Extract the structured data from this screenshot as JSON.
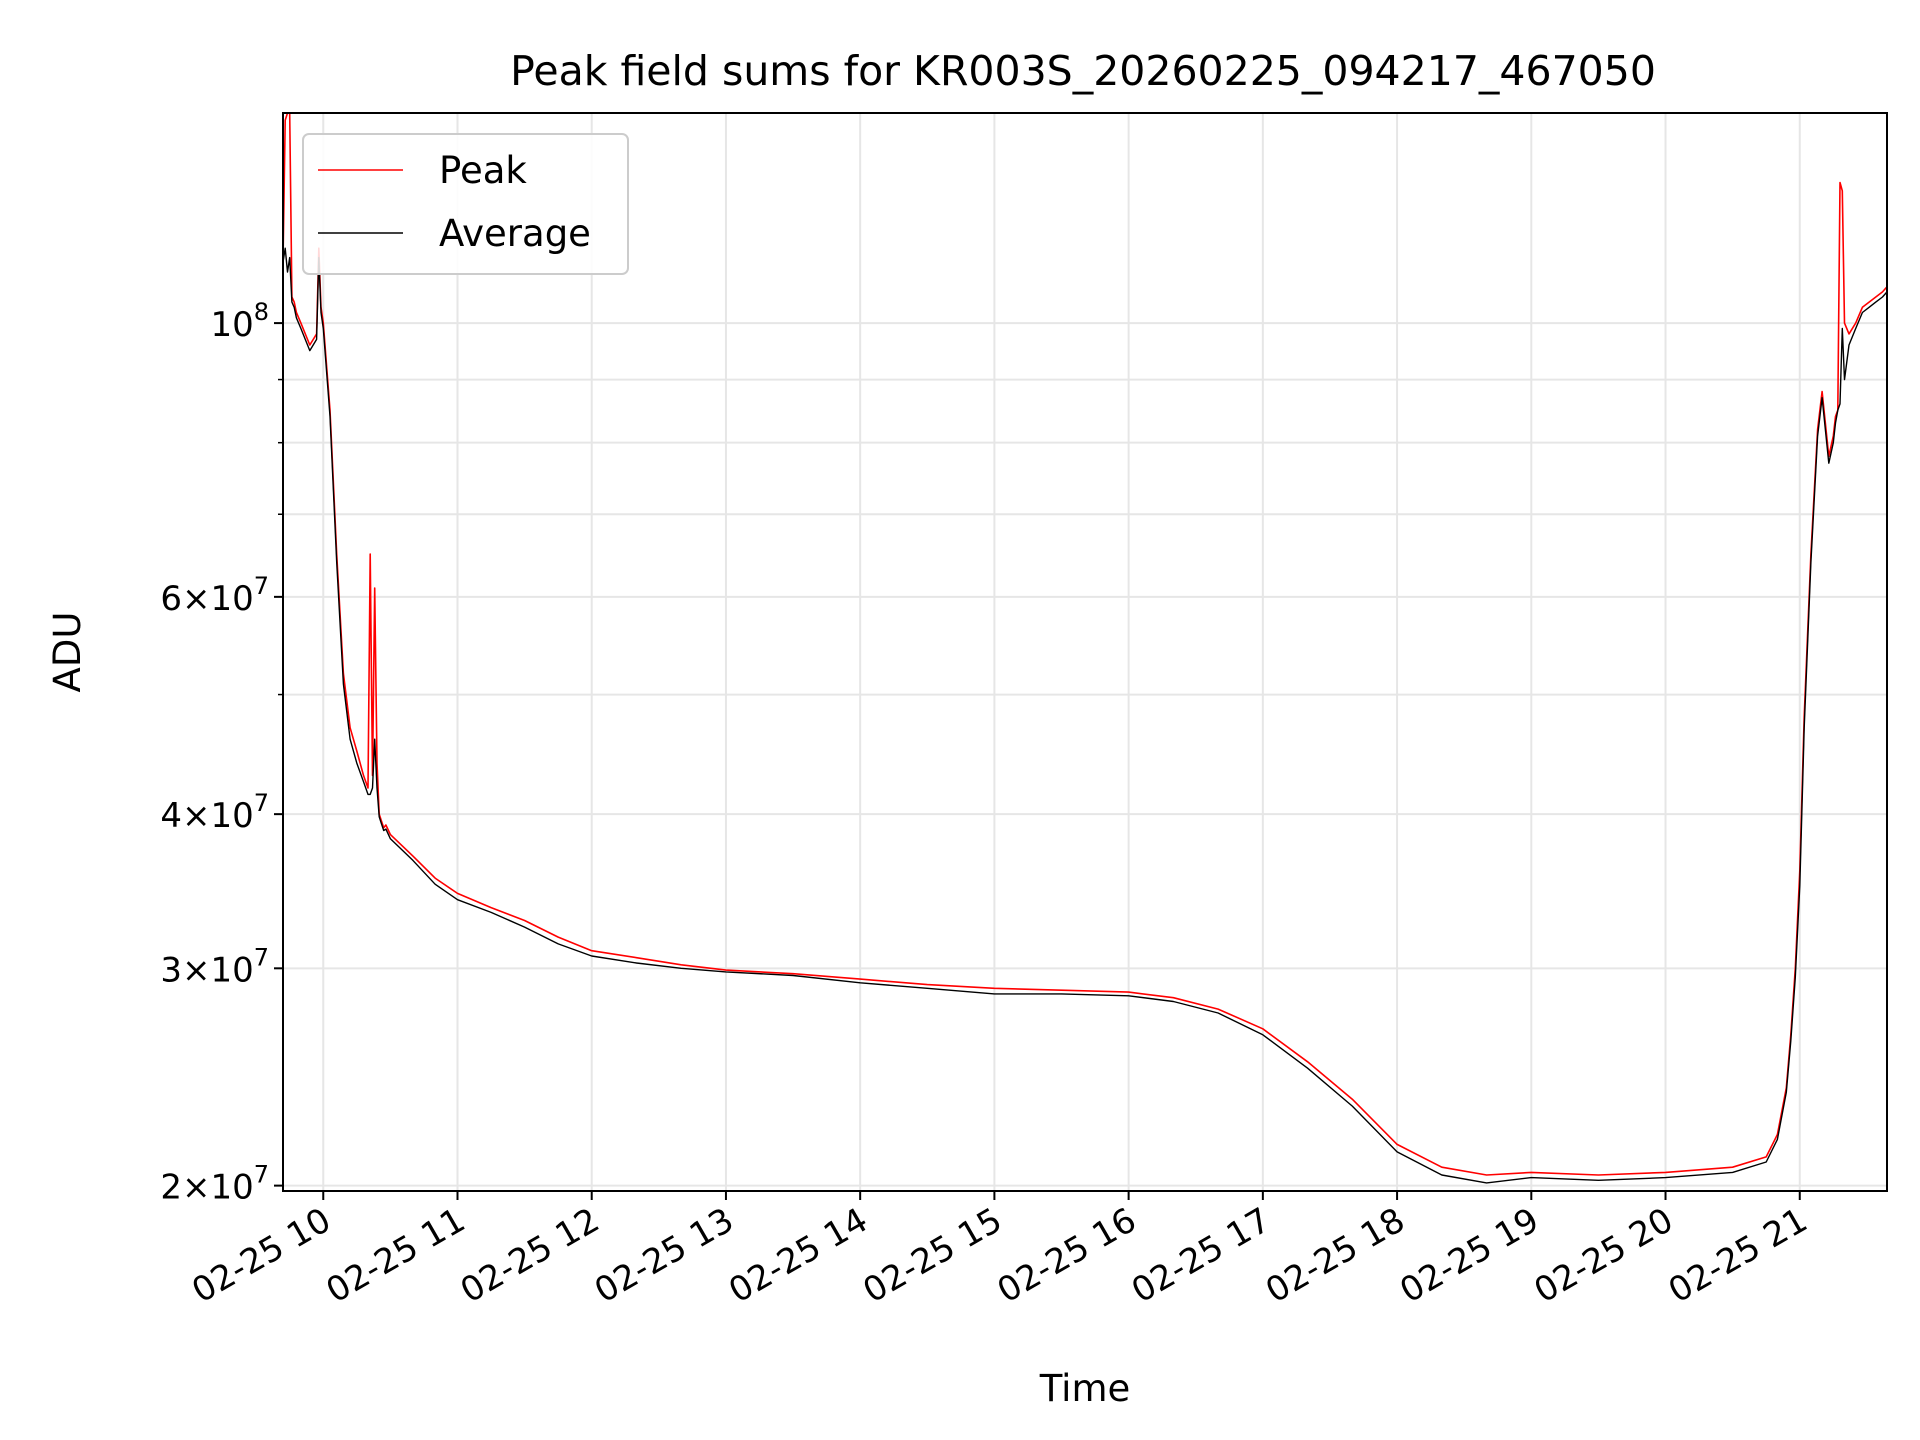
{
  "chart_data": {
    "type": "line",
    "title": "Peak field sums for KR003S_20260225_094217_467050",
    "xlabel": "Time",
    "ylabel": "ADU",
    "x_scale": "time",
    "y_scale": "log",
    "xlim": [
      "2026-02-25 09:42",
      "2026-02-25 21:39"
    ],
    "ylim": [
      19800000,
      148000000
    ],
    "grid": true,
    "legend_position": "top-left",
    "x_ticks": [
      {
        "time": "2026-02-25 10:00",
        "label": "02-25 10"
      },
      {
        "time": "2026-02-25 11:00",
        "label": "02-25 11"
      },
      {
        "time": "2026-02-25 12:00",
        "label": "02-25 12"
      },
      {
        "time": "2026-02-25 13:00",
        "label": "02-25 13"
      },
      {
        "time": "2026-02-25 14:00",
        "label": "02-25 14"
      },
      {
        "time": "2026-02-25 15:00",
        "label": "02-25 15"
      },
      {
        "time": "2026-02-25 16:00",
        "label": "02-25 16"
      },
      {
        "time": "2026-02-25 17:00",
        "label": "02-25 17"
      },
      {
        "time": "2026-02-25 18:00",
        "label": "02-25 18"
      },
      {
        "time": "2026-02-25 19:00",
        "label": "02-25 19"
      },
      {
        "time": "2026-02-25 20:00",
        "label": "02-25 20"
      },
      {
        "time": "2026-02-25 21:00",
        "label": "02-25 21"
      }
    ],
    "y_ticks": [
      {
        "value": 20000000,
        "base": "2",
        "exp": "7"
      },
      {
        "value": 30000000,
        "base": "3",
        "exp": "7"
      },
      {
        "value": 40000000,
        "base": "4",
        "exp": "7"
      },
      {
        "value": 60000000,
        "base": "6",
        "exp": "7"
      },
      {
        "value": 100000000,
        "base": "10",
        "exp": "8"
      }
    ],
    "y_minor_ticks": [
      50000000,
      70000000,
      80000000,
      90000000
    ],
    "series": [
      {
        "name": "Peak",
        "color": "#ff0000",
        "x": [
          "2026-02-25 09:42",
          "2026-02-25 09:43",
          "2026-02-25 09:44",
          "2026-02-25 09:45",
          "2026-02-25 09:46",
          "2026-02-25 09:47",
          "2026-02-25 09:48",
          "2026-02-25 09:50",
          "2026-02-25 09:54",
          "2026-02-25 09:57",
          "2026-02-25 09:58",
          "2026-02-25 09:59",
          "2026-02-25 10:00",
          "2026-02-25 10:03",
          "2026-02-25 10:06",
          "2026-02-25 10:09",
          "2026-02-25 10:12",
          "2026-02-25 10:15",
          "2026-02-25 10:18",
          "2026-02-25 10:20",
          "2026-02-25 10:21",
          "2026-02-25 10:22",
          "2026-02-25 10:23",
          "2026-02-25 10:24",
          "2026-02-25 10:25",
          "2026-02-25 10:26",
          "2026-02-25 10:27",
          "2026-02-25 10:28",
          "2026-02-25 10:30",
          "2026-02-25 10:40",
          "2026-02-25 10:50",
          "2026-02-25 11:00",
          "2026-02-25 11:15",
          "2026-02-25 11:30",
          "2026-02-25 11:45",
          "2026-02-25 12:00",
          "2026-02-25 12:20",
          "2026-02-25 12:40",
          "2026-02-25 13:00",
          "2026-02-25 13:30",
          "2026-02-25 14:00",
          "2026-02-25 14:30",
          "2026-02-25 15:00",
          "2026-02-25 15:30",
          "2026-02-25 16:00",
          "2026-02-25 16:20",
          "2026-02-25 16:40",
          "2026-02-25 17:00",
          "2026-02-25 17:20",
          "2026-02-25 17:40",
          "2026-02-25 18:00",
          "2026-02-25 18:20",
          "2026-02-25 18:40",
          "2026-02-25 19:00",
          "2026-02-25 19:30",
          "2026-02-25 20:00",
          "2026-02-25 20:30",
          "2026-02-25 20:45",
          "2026-02-25 20:50",
          "2026-02-25 20:54",
          "2026-02-25 20:56",
          "2026-02-25 20:58",
          "2026-02-25 21:00",
          "2026-02-25 21:02",
          "2026-02-25 21:05",
          "2026-02-25 21:08",
          "2026-02-25 21:10",
          "2026-02-25 21:13",
          "2026-02-25 21:15",
          "2026-02-25 21:16",
          "2026-02-25 21:17",
          "2026-02-25 21:18",
          "2026-02-25 21:19",
          "2026-02-25 21:20",
          "2026-02-25 21:22",
          "2026-02-25 21:25",
          "2026-02-25 21:28",
          "2026-02-25 21:31",
          "2026-02-25 21:34",
          "2026-02-25 21:37",
          "2026-02-25 21:39"
        ],
        "y": [
          112000000,
          146000000,
          148000000,
          148000000,
          105000000,
          104000000,
          102000000,
          100000000,
          96000000,
          98000000,
          115000000,
          103000000,
          100000000,
          85000000,
          65000000,
          52000000,
          47000000,
          45000000,
          43000000,
          42000000,
          65000000,
          43000000,
          61000000,
          44000000,
          40000000,
          39500000,
          39000000,
          39200000,
          38500000,
          37000000,
          35500000,
          34500000,
          33600000,
          32800000,
          31800000,
          31000000,
          30600000,
          30200000,
          29900000,
          29700000,
          29400000,
          29100000,
          28900000,
          28800000,
          28700000,
          28400000,
          27800000,
          26800000,
          25200000,
          23500000,
          21600000,
          20700000,
          20400000,
          20500000,
          20400000,
          20500000,
          20700000,
          21100000,
          22000000,
          24000000,
          26500000,
          30000000,
          36000000,
          48000000,
          65000000,
          82000000,
          88000000,
          78000000,
          81000000,
          84000000,
          85000000,
          130000000,
          128000000,
          100000000,
          98000000,
          100000000,
          103000000,
          104000000,
          105000000,
          106000000,
          107000000
        ]
      },
      {
        "name": "Average",
        "color": "#000000",
        "x": [
          "2026-02-25 09:42",
          "2026-02-25 09:43",
          "2026-02-25 09:44",
          "2026-02-25 09:45",
          "2026-02-25 09:46",
          "2026-02-25 09:47",
          "2026-02-25 09:48",
          "2026-02-25 09:50",
          "2026-02-25 09:54",
          "2026-02-25 09:57",
          "2026-02-25 09:58",
          "2026-02-25 09:59",
          "2026-02-25 10:00",
          "2026-02-25 10:03",
          "2026-02-25 10:06",
          "2026-02-25 10:09",
          "2026-02-25 10:12",
          "2026-02-25 10:15",
          "2026-02-25 10:18",
          "2026-02-25 10:20",
          "2026-02-25 10:21",
          "2026-02-25 10:22",
          "2026-02-25 10:23",
          "2026-02-25 10:24",
          "2026-02-25 10:25",
          "2026-02-25 10:26",
          "2026-02-25 10:27",
          "2026-02-25 10:28",
          "2026-02-25 10:30",
          "2026-02-25 10:40",
          "2026-02-25 10:50",
          "2026-02-25 11:00",
          "2026-02-25 11:15",
          "2026-02-25 11:30",
          "2026-02-25 11:45",
          "2026-02-25 12:00",
          "2026-02-25 12:20",
          "2026-02-25 12:40",
          "2026-02-25 13:00",
          "2026-02-25 13:30",
          "2026-02-25 14:00",
          "2026-02-25 14:30",
          "2026-02-25 15:00",
          "2026-02-25 15:30",
          "2026-02-25 16:00",
          "2026-02-25 16:20",
          "2026-02-25 16:40",
          "2026-02-25 17:00",
          "2026-02-25 17:20",
          "2026-02-25 17:40",
          "2026-02-25 18:00",
          "2026-02-25 18:20",
          "2026-02-25 18:40",
          "2026-02-25 19:00",
          "2026-02-25 19:30",
          "2026-02-25 20:00",
          "2026-02-25 20:30",
          "2026-02-25 20:45",
          "2026-02-25 20:50",
          "2026-02-25 20:54",
          "2026-02-25 20:56",
          "2026-02-25 20:58",
          "2026-02-25 21:00",
          "2026-02-25 21:02",
          "2026-02-25 21:05",
          "2026-02-25 21:08",
          "2026-02-25 21:10",
          "2026-02-25 21:13",
          "2026-02-25 21:15",
          "2026-02-25 21:16",
          "2026-02-25 21:17",
          "2026-02-25 21:18",
          "2026-02-25 21:19",
          "2026-02-25 21:20",
          "2026-02-25 21:22",
          "2026-02-25 21:25",
          "2026-02-25 21:28",
          "2026-02-25 21:31",
          "2026-02-25 21:34",
          "2026-02-25 21:37",
          "2026-02-25 21:39"
        ],
        "y": [
          112000000,
          115000000,
          110000000,
          113000000,
          104000000,
          103000000,
          101000000,
          99000000,
          95000000,
          97000000,
          113000000,
          102000000,
          99000000,
          84000000,
          64000000,
          51000000,
          46000000,
          44000000,
          42500000,
          41500000,
          41500000,
          42000000,
          46000000,
          42000000,
          39800000,
          39300000,
          38800000,
          38900000,
          38200000,
          36700000,
          35100000,
          34100000,
          33300000,
          32400000,
          31400000,
          30700000,
          30300000,
          30000000,
          29800000,
          29600000,
          29200000,
          28900000,
          28600000,
          28600000,
          28500000,
          28200000,
          27600000,
          26500000,
          24900000,
          23200000,
          21300000,
          20400000,
          20100000,
          20300000,
          20200000,
          20300000,
          20500000,
          20900000,
          21800000,
          23800000,
          26200000,
          29500000,
          35000000,
          47000000,
          64000000,
          81000000,
          87000000,
          77000000,
          80000000,
          83000000,
          85000000,
          86000000,
          99000000,
          90000000,
          96000000,
          99000000,
          102000000,
          103000000,
          104000000,
          105000000,
          106000000
        ]
      }
    ]
  }
}
